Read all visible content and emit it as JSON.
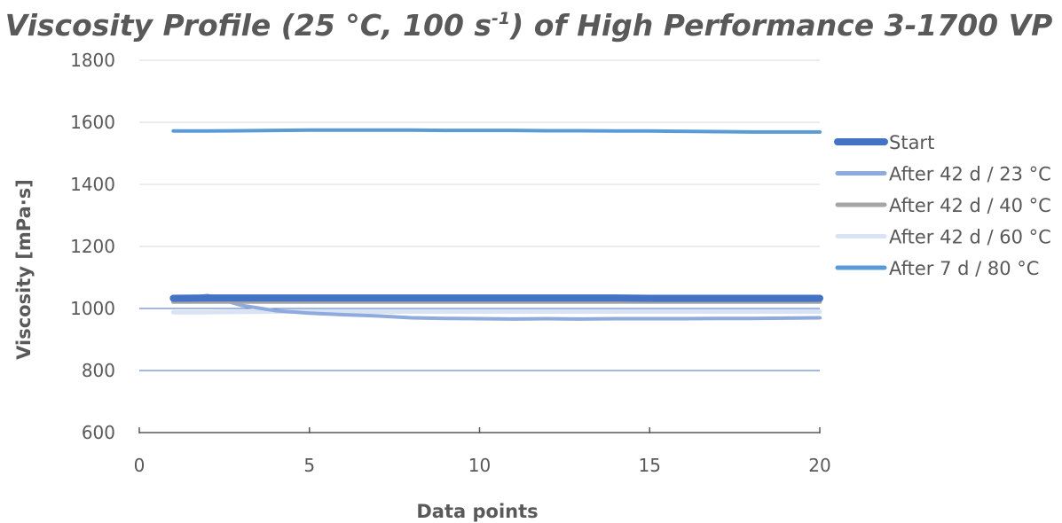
{
  "chart_data": {
    "type": "line",
    "title": "Viscosity Profile (25 °C, 100 s",
    "title_superscript": "-1",
    "title_suffix": ") of High Performance 3-1700 VP",
    "xlabel": "Data points",
    "ylabel": "Viscosity [mPa·s]",
    "xlim": [
      0,
      20
    ],
    "ylim": [
      600,
      1800
    ],
    "x_ticks": [
      0,
      5,
      10,
      15,
      20
    ],
    "y_ticks": [
      600,
      800,
      1000,
      1200,
      1400,
      1600,
      1800
    ],
    "grid": true,
    "legend_position": "right",
    "x": [
      1,
      2,
      3,
      4,
      5,
      6,
      7,
      8,
      9,
      10,
      11,
      12,
      13,
      14,
      15,
      16,
      17,
      18,
      19,
      20
    ],
    "series": [
      {
        "name": "Start",
        "color": "#4472c4",
        "values": [
          1033,
          1034,
          1034,
          1034,
          1034,
          1034,
          1034,
          1034,
          1034,
          1034,
          1034,
          1034,
          1034,
          1034,
          1033,
          1033,
          1033,
          1033,
          1033,
          1033
        ]
      },
      {
        "name": "After 42 d / 23 °C",
        "color": "#8faadc",
        "values": [
          1025,
          1042,
          1010,
          993,
          985,
          980,
          976,
          970,
          968,
          967,
          966,
          967,
          966,
          967,
          967,
          967,
          968,
          968,
          969,
          970
        ]
      },
      {
        "name": "After 42 d / 40 °C",
        "color": "#a5a5a5",
        "values": [
          1022,
          1022,
          1022,
          1022,
          1022,
          1022,
          1022,
          1022,
          1022,
          1022,
          1022,
          1022,
          1022,
          1022,
          1022,
          1022,
          1022,
          1022,
          1022,
          1022
        ]
      },
      {
        "name": "After 42 d / 60 °C",
        "color": "#dae3f3",
        "values": [
          988,
          988,
          989,
          990,
          990,
          990,
          990,
          990,
          990,
          990,
          990,
          990,
          990,
          990,
          990,
          990,
          990,
          990,
          990,
          990
        ]
      },
      {
        "name": "After 7 d / 80 °C",
        "color": "#5b9bd5",
        "values": [
          1572,
          1572,
          1573,
          1574,
          1575,
          1575,
          1575,
          1575,
          1574,
          1574,
          1574,
          1573,
          1573,
          1572,
          1572,
          1571,
          1570,
          1569,
          1569,
          1569
        ]
      }
    ]
  }
}
